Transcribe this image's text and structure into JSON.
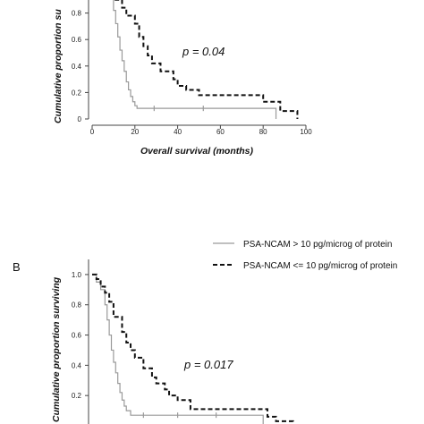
{
  "chart_data": [
    {
      "type": "line",
      "panel_label": "",
      "ylabel": "Cumulative proportion su",
      "xlabel": "Overall survival (months)",
      "annotation": "p = 0.04",
      "xlim": [
        0,
        100
      ],
      "ylim": [
        0,
        1
      ],
      "xticks": [
        "0",
        "20",
        "40",
        "60",
        "80",
        "100"
      ],
      "yticks": [
        "0",
        "0.2",
        "0.4",
        "0.6",
        "0.8"
      ],
      "series": [
        {
          "style": "solid",
          "color": "#9a9a9a",
          "x": [
            0,
            8,
            10,
            11,
            12,
            13,
            14,
            15,
            16,
            17,
            18,
            19,
            20,
            21,
            22,
            24,
            26,
            85,
            86
          ],
          "y": [
            1.0,
            0.92,
            0.82,
            0.72,
            0.62,
            0.52,
            0.44,
            0.36,
            0.28,
            0.22,
            0.17,
            0.13,
            0.1,
            0.08,
            0.08,
            0.08,
            0.08,
            0.08,
            0.0
          ],
          "censor_x": [
            29,
            52
          ]
        },
        {
          "style": "dashed",
          "color": "#111111",
          "x": [
            0,
            8,
            10,
            14,
            16,
            20,
            22,
            24,
            26,
            28,
            32,
            38,
            40,
            44,
            50,
            54,
            80,
            84,
            88,
            92,
            96
          ],
          "y": [
            1.0,
            0.95,
            0.9,
            0.84,
            0.78,
            0.72,
            0.62,
            0.55,
            0.48,
            0.42,
            0.36,
            0.3,
            0.25,
            0.22,
            0.18,
            0.18,
            0.13,
            0.13,
            0.06,
            0.06,
            0.0
          ],
          "censor_x": []
        }
      ]
    },
    {
      "type": "line",
      "panel_label": "B",
      "ylabel": "Cumulative proportion surviving",
      "xlabel": "",
      "annotation": "p = 0.017",
      "xlim": [
        0,
        100
      ],
      "ylim": [
        0,
        1.1
      ],
      "xticks": [],
      "yticks": [
        "0.2",
        "0.4",
        "0.6",
        "0.8",
        "1.0"
      ],
      "legend": {
        "position": "top",
        "entries": [
          {
            "label": "PSA-NCAM > 10 pg/microg of protein",
            "style": "solid",
            "color": "#9a9a9a"
          },
          {
            "label": "PSA-NCAM <= 10 pg/microg of protein",
            "style": "dashed",
            "color": "#111111"
          }
        ]
      },
      "series": [
        {
          "style": "solid",
          "color": "#9a9a9a",
          "x": [
            0,
            2,
            4,
            6,
            7,
            8,
            9,
            10,
            11,
            12,
            13,
            14,
            15,
            16,
            18,
            20,
            22,
            78,
            80
          ],
          "y": [
            1.0,
            0.95,
            0.9,
            0.8,
            0.7,
            0.6,
            0.5,
            0.42,
            0.35,
            0.28,
            0.22,
            0.17,
            0.13,
            0.1,
            0.07,
            0.07,
            0.07,
            0.07,
            0.0
          ],
          "censor_x": [
            24,
            40,
            58
          ]
        },
        {
          "style": "dashed",
          "color": "#111111",
          "x": [
            0,
            2,
            4,
            6,
            8,
            10,
            14,
            16,
            18,
            20,
            24,
            28,
            30,
            34,
            36,
            40,
            44,
            46,
            50,
            78,
            82,
            86,
            90,
            94,
            98
          ],
          "y": [
            1.0,
            0.97,
            0.92,
            0.88,
            0.82,
            0.72,
            0.62,
            0.55,
            0.5,
            0.45,
            0.38,
            0.32,
            0.28,
            0.24,
            0.2,
            0.17,
            0.17,
            0.11,
            0.11,
            0.11,
            0.06,
            0.03,
            0.03,
            0.0,
            0.0
          ],
          "censor_x": []
        }
      ]
    }
  ]
}
